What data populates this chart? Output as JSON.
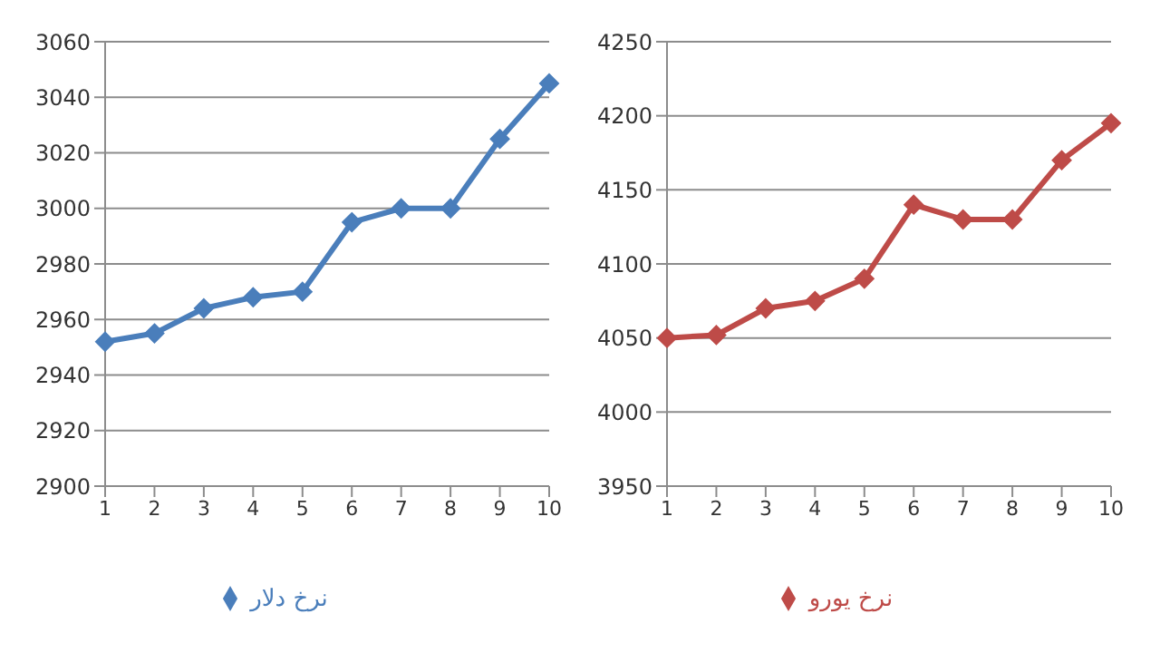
{
  "chart_data": [
    {
      "type": "line",
      "categories": [
        "1",
        "2",
        "3",
        "4",
        "5",
        "6",
        "7",
        "8",
        "9",
        "10"
      ],
      "series": [
        {
          "name": "نرخ دلار",
          "color": "#4a7ebb",
          "values": [
            2952,
            2955,
            2964,
            2968,
            2970,
            2995,
            3000,
            3000,
            3025,
            3045
          ]
        }
      ],
      "ylim": [
        2900,
        3060
      ],
      "yticks": [
        2900,
        2920,
        2940,
        2960,
        2980,
        3000,
        3020,
        3040,
        3060
      ],
      "grid": "y",
      "legend": "bottom",
      "marker": "diamond",
      "line_style": "solid"
    },
    {
      "type": "line",
      "categories": [
        "1",
        "2",
        "3",
        "4",
        "5",
        "6",
        "7",
        "8",
        "9",
        "10"
      ],
      "series": [
        {
          "name": "نرخ یورو",
          "color": "#be4b48",
          "values": [
            4050,
            4052,
            4070,
            4075,
            4090,
            4140,
            4130,
            4130,
            4170,
            4195
          ]
        }
      ],
      "ylim": [
        3950,
        4250
      ],
      "yticks": [
        3950,
        4000,
        4050,
        4100,
        4150,
        4200,
        4250
      ],
      "grid": "y",
      "legend": "bottom",
      "marker": "diamond",
      "line_style": "solid"
    }
  ]
}
